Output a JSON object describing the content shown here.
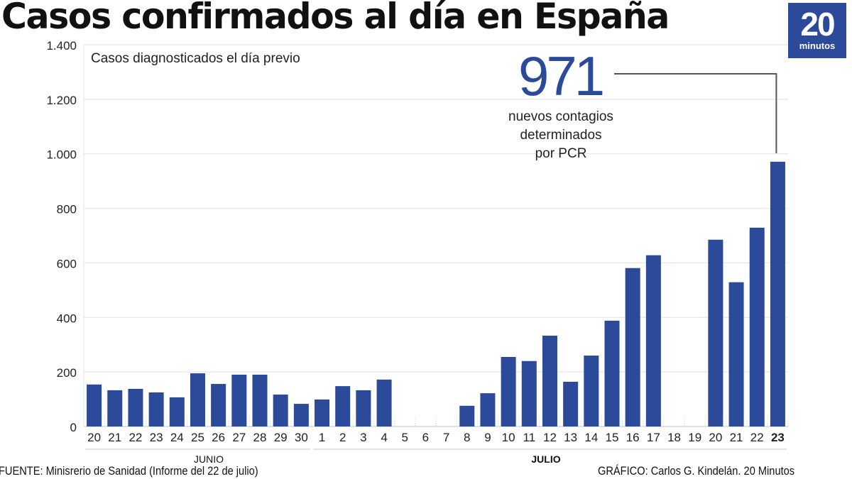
{
  "header": {
    "title": "Casos confirmados al día en España",
    "logo_number": "20",
    "logo_word": "minutos"
  },
  "callout": {
    "value": "971",
    "text_lines": [
      "nuevos contagios",
      "determinados",
      "por PCR"
    ]
  },
  "footer": {
    "source": "FUENTE: Minisrerio de Sanidad (Informe del 22 de julio)",
    "credit": "GRÁFICO: Carlos G. Kindelán. 20 Minutos"
  },
  "colors": {
    "bar": "#2b4a9a",
    "grid": "#e6e6e6",
    "text": "#1a1a1a"
  },
  "chart_data": {
    "type": "bar",
    "title": "Casos confirmados al día en España",
    "subtitle": "Casos diagnosticados el día previo",
    "xlabel": "",
    "ylabel": "",
    "ylim": [
      0,
      1400
    ],
    "yticks": [
      0,
      200,
      400,
      600,
      800,
      1000,
      1200,
      1400
    ],
    "ytick_labels": [
      "0",
      "200",
      "400",
      "600",
      "800",
      "1.000",
      "1.200",
      "1.400"
    ],
    "grid": true,
    "categories": [
      "20",
      "21",
      "22",
      "23",
      "24",
      "25",
      "26",
      "27",
      "28",
      "29",
      "30",
      "1",
      "2",
      "3",
      "4",
      "5",
      "6",
      "7",
      "8",
      "9",
      "10",
      "11",
      "12",
      "13",
      "14",
      "15",
      "16",
      "17",
      "18",
      "19",
      "20",
      "21",
      "22",
      "23"
    ],
    "values": [
      154,
      133,
      138,
      125,
      107,
      195,
      156,
      190,
      190,
      117,
      83,
      99,
      148,
      133,
      172,
      null,
      null,
      null,
      76,
      122,
      255,
      240,
      333,
      164,
      260,
      388,
      581,
      628,
      null,
      null,
      685,
      529,
      729,
      971
    ],
    "month_groups": [
      {
        "label": "JUNIO",
        "from": 0,
        "to": 10
      },
      {
        "label": "JULIO",
        "from": 11,
        "to": 33
      }
    ],
    "annotation": {
      "index": 33,
      "value": 971,
      "text": "971 nuevos contagios determinados por PCR"
    }
  }
}
